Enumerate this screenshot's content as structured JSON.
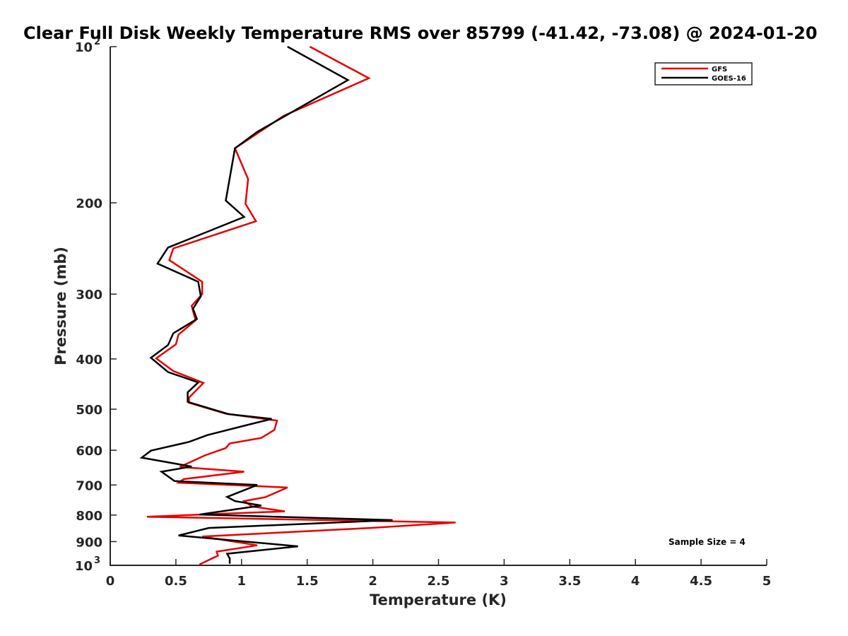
{
  "chart_data": {
    "type": "line",
    "title": "Clear Full Disk Weekly Temperature RMS over 85799 (-41.42, -73.08) @ 2024-01-20",
    "xlabel": "Temperature (K)",
    "ylabel": "Pressure (mb)",
    "xlim": [
      0,
      5
    ],
    "ylim": [
      1000,
      100
    ],
    "yscale": "log",
    "y_reversed": true,
    "grid": false,
    "legend_position": "top-right",
    "x_ticks": [
      "0",
      "0.5",
      "1",
      "1.5",
      "2",
      "2.5",
      "3",
      "3.5",
      "4",
      "4.5",
      "5"
    ],
    "x_tick_values": [
      0,
      0.5,
      1,
      1.5,
      2,
      2.5,
      3,
      3.5,
      4,
      4.5,
      5
    ],
    "y_ticks": [
      {
        "value": 100,
        "base": "10",
        "exp": "2"
      },
      {
        "value": 200,
        "label": "200"
      },
      {
        "value": 300,
        "label": "300"
      },
      {
        "value": 400,
        "label": "400"
      },
      {
        "value": 500,
        "label": "500"
      },
      {
        "value": 600,
        "label": "600"
      },
      {
        "value": 700,
        "label": "700"
      },
      {
        "value": 800,
        "label": "800"
      },
      {
        "value": 900,
        "label": "900"
      },
      {
        "value": 1000,
        "base": "10",
        "exp": "3"
      }
    ],
    "annotation": "Sample Size = 4",
    "series": [
      {
        "name": "GFS",
        "color": "#e60000",
        "points": [
          [
            1.52,
            100
          ],
          [
            1.97,
            115
          ],
          [
            1.32,
            136
          ],
          [
            0.95,
            157
          ],
          [
            1.05,
            180
          ],
          [
            1.03,
            201
          ],
          [
            1.11,
            217
          ],
          [
            0.48,
            245
          ],
          [
            0.45,
            258
          ],
          [
            0.7,
            284
          ],
          [
            0.7,
            300
          ],
          [
            0.62,
            316
          ],
          [
            0.65,
            337
          ],
          [
            0.52,
            359
          ],
          [
            0.5,
            375
          ],
          [
            0.35,
            399
          ],
          [
            0.48,
            422
          ],
          [
            0.71,
            445
          ],
          [
            0.6,
            475
          ],
          [
            0.6,
            486
          ],
          [
            0.88,
            510
          ],
          [
            1.27,
            526
          ],
          [
            1.25,
            548
          ],
          [
            1.15,
            568
          ],
          [
            0.91,
            582
          ],
          [
            0.88,
            594
          ],
          [
            0.72,
            614
          ],
          [
            0.53,
            646
          ],
          [
            1.02,
            660
          ],
          [
            0.56,
            682
          ],
          [
            0.52,
            693
          ],
          [
            1.35,
            708
          ],
          [
            1.18,
            739
          ],
          [
            1.02,
            752
          ],
          [
            1.08,
            770
          ],
          [
            1.33,
            787
          ],
          [
            0.28,
            806
          ],
          [
            2.63,
            827
          ],
          [
            1.98,
            847
          ],
          [
            0.7,
            880
          ],
          [
            1.12,
            915
          ],
          [
            0.81,
            941
          ],
          [
            0.82,
            958
          ],
          [
            0.68,
            996
          ]
        ]
      },
      {
        "name": "GOES-16",
        "color": "#000000",
        "points": [
          [
            1.35,
            100
          ],
          [
            1.81,
            116
          ],
          [
            1.12,
            146
          ],
          [
            0.95,
            157
          ],
          [
            0.88,
            198
          ],
          [
            1.02,
            213
          ],
          [
            0.44,
            244
          ],
          [
            0.36,
            262
          ],
          [
            0.67,
            284
          ],
          [
            0.69,
            303
          ],
          [
            0.63,
            320
          ],
          [
            0.66,
            335
          ],
          [
            0.48,
            357
          ],
          [
            0.44,
            376
          ],
          [
            0.31,
            398
          ],
          [
            0.44,
            424
          ],
          [
            0.67,
            444
          ],
          [
            0.59,
            464
          ],
          [
            0.59,
            484
          ],
          [
            0.9,
            511
          ],
          [
            1.23,
            522
          ],
          [
            1.06,
            535
          ],
          [
            0.74,
            561
          ],
          [
            0.6,
            578
          ],
          [
            0.31,
            601
          ],
          [
            0.24,
            620
          ],
          [
            0.62,
            645
          ],
          [
            0.39,
            660
          ],
          [
            0.49,
            688
          ],
          [
            1.12,
            700
          ],
          [
            0.89,
            738
          ],
          [
            0.95,
            752
          ],
          [
            1.15,
            767
          ],
          [
            0.68,
            798
          ],
          [
            2.15,
            818
          ],
          [
            0.75,
            847
          ],
          [
            0.52,
            876
          ],
          [
            1.43,
            919
          ],
          [
            0.89,
            950
          ],
          [
            0.91,
            970
          ],
          [
            0.91,
            993
          ]
        ]
      }
    ]
  }
}
